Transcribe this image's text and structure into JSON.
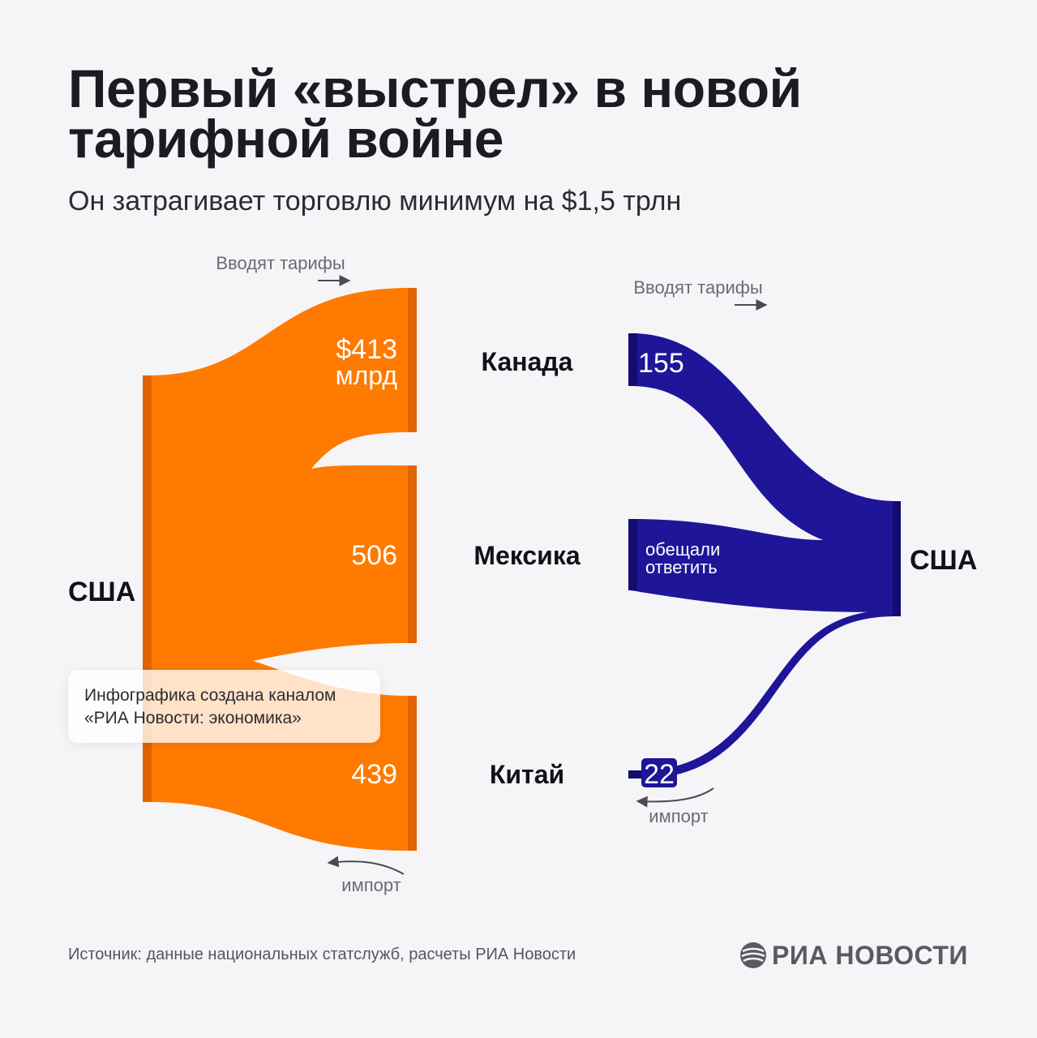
{
  "title": "Первый «выстрел» в новой тарифной войне",
  "subtitle": "Он затрагивает торговлю минимум на $1,5 трлн",
  "credit_line1": "Инфографика создана каналом",
  "credit_line2": "«РИА Новости: экономика»",
  "source": "Источник: данные национальных статслужб, расчеты РИА Новости",
  "logo": "РИА НОВОСТИ",
  "colors": {
    "orange": "#ff7a00",
    "orange_dark": "#e06400",
    "blue": "#1f1599",
    "blue_dark": "#130c6e"
  },
  "chart_data": [
    {
      "type": "sankey",
      "title": "США → Канада, Мексика, Китай",
      "source_node": "США",
      "direction_label": "Вводят тарифы",
      "flow_label": "импорт",
      "unit": "млрд",
      "flows": [
        {
          "target": "Канада",
          "value": 413,
          "label": "$413",
          "unit_label": "млрд"
        },
        {
          "target": "Мексика",
          "value": 506,
          "label": "506"
        },
        {
          "target": "Китай",
          "value": 439,
          "label": "439"
        }
      ]
    },
    {
      "type": "sankey",
      "title": "Канада, Мексика, Китай → США",
      "target_node": "США",
      "direction_label": "Вводят тарифы",
      "flow_label": "импорт",
      "flows": [
        {
          "source": "Канада",
          "value": 155,
          "label": "155"
        },
        {
          "source": "Мексика",
          "value": null,
          "label": "обещали ответить"
        },
        {
          "source": "Китай",
          "value": 22,
          "label": "22"
        }
      ]
    }
  ]
}
